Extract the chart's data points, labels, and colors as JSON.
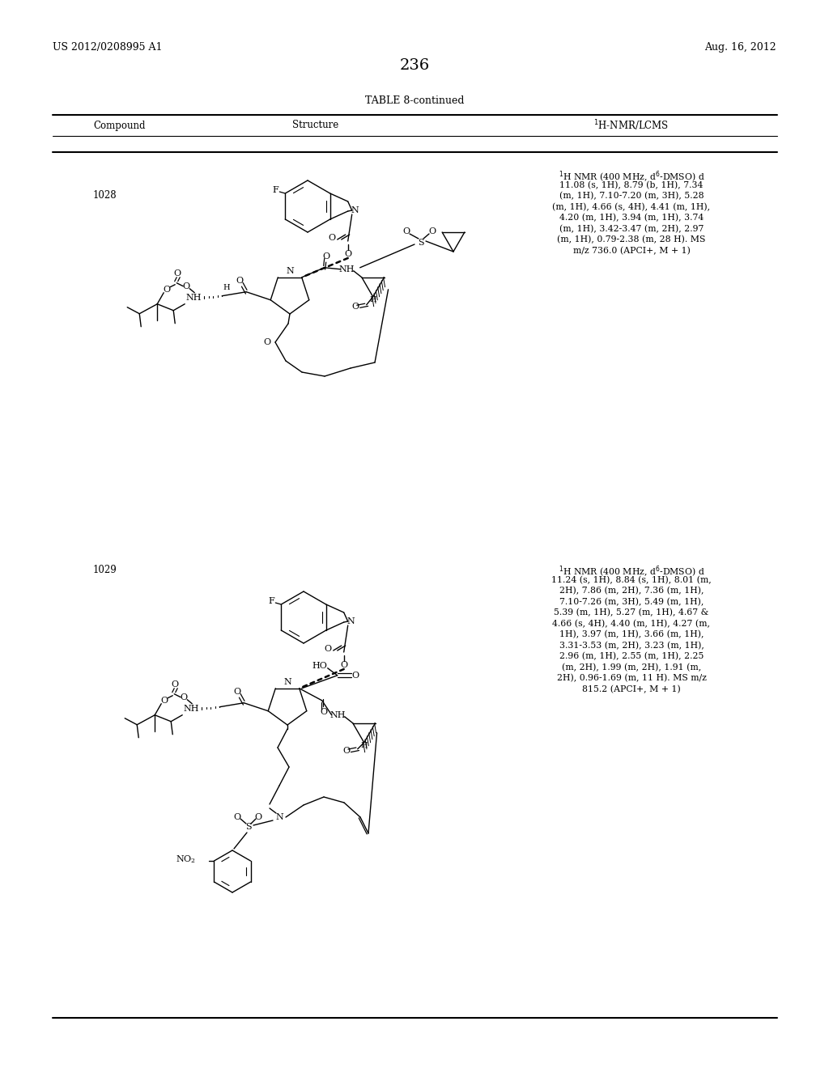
{
  "background_color": "#ffffff",
  "page_number": "236",
  "patent_number": "US 2012/0208995 A1",
  "patent_date": "Aug. 16, 2012",
  "table_title": "TABLE 8-continued",
  "col_compound": "Compound",
  "col_structure": "Structure",
  "col_nmr": "\\u00b9H-NMR/LCMS",
  "compound_1028": "1028",
  "compound_1029": "1029",
  "nmr_1028_lines": [
    "\\u00b9H NMR (400 MHz, d\\u2076-DMSO) d",
    "11.08 (s, 1H), 8.79 (b, 1H), 7.34",
    "(m, 1H), 7.10-7.20 (m, 3H), 5.28",
    "(m, 1H), 4.66 (s, 4H), 4.41 (m, 1H),",
    "4.20 (m, 1H), 3.94 (m, 1H), 3.74",
    "(m, 1H), 3.42-3.47 (m, 2H), 2.97",
    "(m, 1H), 0.79-2.38 (m, 28 H). MS",
    "m/z 736.0 (APCI+, M + 1)"
  ],
  "nmr_1029_lines": [
    "\\u00b9H NMR (400 MHz, d\\u2076-DMSO) d",
    "11.24 (s, 1H), 8.84 (s, 1H), 8.01 (m,",
    "2H), 7.86 (m, 2H), 7.36 (m, 1H),",
    "7.10-7.26 (m, 3H), 5.49 (m, 1H),",
    "5.39 (m, 1H), 5.27 (m, 1H), 4.67 &",
    "4.66 (s, 4H), 4.40 (m, 1H), 4.27 (m,",
    "1H), 3.97 (m, 1H), 3.66 (m, 1H),",
    "3.31-3.53 (m, 2H), 3.23 (m, 1H),",
    "2.96 (m, 1H), 2.55 (m, 1H), 2.25",
    "(m, 2H), 1.99 (m, 2H), 1.91 (m,",
    "2H), 0.96-1.69 (m, 11 H). MS m/z",
    "815.2 (APCI+, M + 1)"
  ]
}
